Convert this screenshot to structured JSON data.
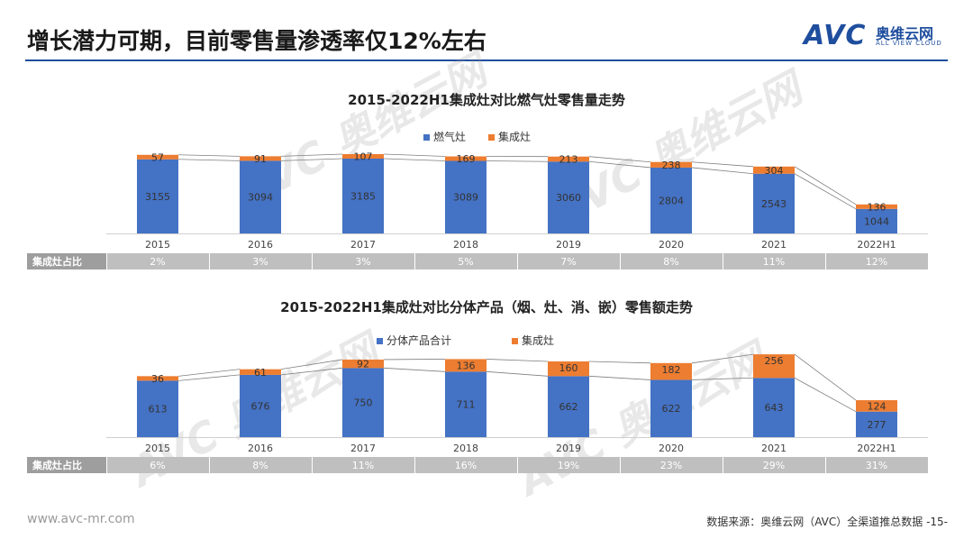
{
  "header": {
    "title": "增长潜力可期，目前零售量渗透率仅12%左右",
    "logo_text": "AVC",
    "logo_cn": "奥维云网",
    "logo_en": "ALL VIEW CLOUD"
  },
  "footer": {
    "url": "www.avc-mr.com",
    "source": "数据来源：奥维云网（AVC）全渠道推总数据 -15-"
  },
  "colors": {
    "blue": "#4472c4",
    "orange": "#ed7d31",
    "share_row_bg": "#bfbfbf",
    "share_label_bg": "#9e9e9e"
  },
  "chart_data": [
    {
      "type": "bar",
      "stacked": true,
      "title": "2015-2022H1集成灶对比燃气灶零售量走势",
      "categories": [
        "2015",
        "2016",
        "2017",
        "2018",
        "2019",
        "2020",
        "2021",
        "2022H1"
      ],
      "series": [
        {
          "name": "燃气灶",
          "color": "#4472c4",
          "values": [
            3155,
            3094,
            3185,
            3089,
            3060,
            2804,
            2543,
            1044
          ]
        },
        {
          "name": "集成灶",
          "color": "#ed7d31",
          "values": [
            57,
            91,
            107,
            169,
            213,
            238,
            304,
            136
          ]
        }
      ],
      "share_row": {
        "label": "集成灶占比",
        "values": [
          "2%",
          "3%",
          "3%",
          "5%",
          "7%",
          "8%",
          "11%",
          "12%"
        ]
      }
    },
    {
      "type": "bar",
      "stacked": true,
      "title": "2015-2022H1集成灶对比分体产品（烟、灶、消、嵌）零售额走势",
      "categories": [
        "2015",
        "2016",
        "2017",
        "2018",
        "2019",
        "2020",
        "2021",
        "2022H1"
      ],
      "series": [
        {
          "name": "分体产品合计",
          "color": "#4472c4",
          "values": [
            613,
            676,
            750,
            711,
            662,
            622,
            643,
            277
          ]
        },
        {
          "name": "集成灶",
          "color": "#ed7d31",
          "values": [
            36,
            61,
            92,
            136,
            160,
            182,
            256,
            124
          ]
        }
      ],
      "share_row": {
        "label": "集成灶占比",
        "values": [
          "6%",
          "8%",
          "11%",
          "16%",
          "19%",
          "23%",
          "29%",
          "31%"
        ]
      }
    }
  ]
}
